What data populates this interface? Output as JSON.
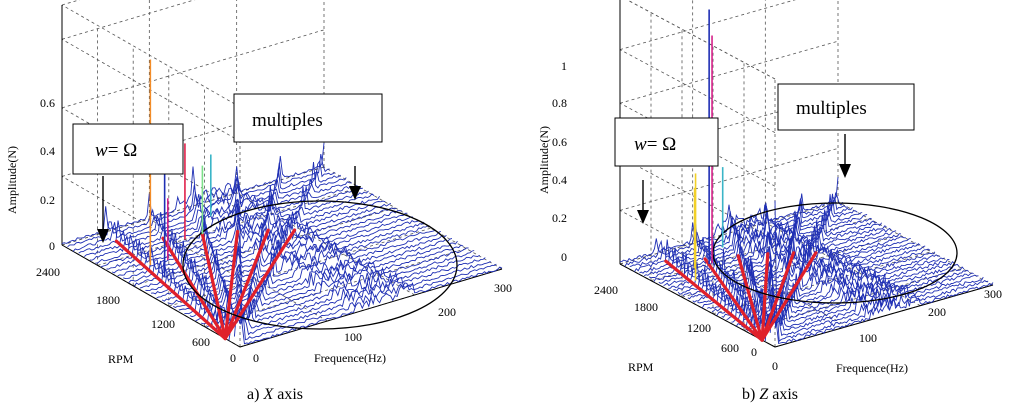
{
  "chart_data": [
    {
      "type": "waterfall-3d",
      "caption_prefix": "a)",
      "caption_axis": "X",
      "caption_suffix": "axis",
      "ylabel": "Amplitude(N)",
      "xlabel": "Frequence(Hz)",
      "zlabel": "RPM",
      "amp_ticks": [
        "0",
        "0.2",
        "0.4",
        "0.6"
      ],
      "rpm_ticks": [
        "600",
        "1200",
        "1800",
        "2400"
      ],
      "freq_ticks": [
        "100",
        "200",
        "300"
      ],
      "origin_rpm_label": "0",
      "origin_freq_label": "0",
      "amp_range": [
        0,
        0.7
      ],
      "freq_range": [
        0,
        300
      ],
      "rpm_range": [
        0,
        3000
      ],
      "annotation_speed_prefix": "w",
      "annotation_speed_rest": "= Ω",
      "annotation_multiples": "multiples",
      "grid": true,
      "order_lines": 6,
      "peaks": [
        {
          "freq": 40,
          "rpm": 2100,
          "amp": 0.6,
          "color": "#f28c28"
        },
        {
          "freq": 36,
          "rpm": 1800,
          "amp": 0.3,
          "color": "#1f2fb4"
        },
        {
          "freq": 60,
          "rpm": 2100,
          "amp": 0.18,
          "color": "#d6228a"
        },
        {
          "freq": 100,
          "rpm": 2400,
          "amp": 0.28,
          "color": "#e0204a"
        },
        {
          "freq": 120,
          "rpm": 2400,
          "amp": 0.2,
          "color": "#7de08a"
        },
        {
          "freq": 150,
          "rpm": 2700,
          "amp": 0.18,
          "color": "#3ab5c7"
        }
      ]
    },
    {
      "type": "waterfall-3d",
      "caption_prefix": "b)",
      "caption_axis": "Z",
      "caption_suffix": "axis",
      "ylabel": "Amplitude(N)",
      "xlabel": "Frequence(Hz)",
      "zlabel": "RPM",
      "amp_ticks": [
        "0",
        "0.2",
        "0.4",
        "0.6",
        "0.8",
        "1"
      ],
      "rpm_ticks": [
        "600",
        "1200",
        "1800",
        "2400"
      ],
      "freq_ticks": [
        "100",
        "200",
        "300"
      ],
      "origin_rpm_label": "0",
      "origin_freq_label": "0",
      "amp_range": [
        0,
        1
      ],
      "freq_range": [
        0,
        300
      ],
      "rpm_range": [
        0,
        3000
      ],
      "annotation_speed_prefix": "w",
      "annotation_speed_rest": "= Ω",
      "annotation_multiples": "multiples",
      "grid": true,
      "order_lines": 6,
      "peaks": [
        {
          "freq": 80,
          "rpm": 2400,
          "amp": 0.95,
          "color": "#1f2fb4"
        },
        {
          "freq": 84,
          "rpm": 2400,
          "amp": 0.85,
          "color": "#d6228a"
        },
        {
          "freq": 40,
          "rpm": 2100,
          "amp": 0.4,
          "color": "#f2d028"
        },
        {
          "freq": 60,
          "rpm": 2400,
          "amp": 0.3,
          "color": "#f2d028"
        },
        {
          "freq": 120,
          "rpm": 2700,
          "amp": 0.3,
          "color": "#3ab5c7"
        }
      ]
    }
  ]
}
